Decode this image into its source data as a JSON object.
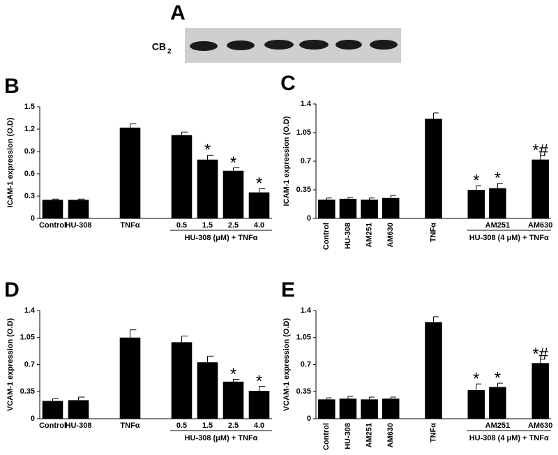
{
  "blot": {
    "panel_label": "A",
    "label": "CB",
    "subscript": "2"
  },
  "chart_data": [
    {
      "type": "bar",
      "panel_label": "B",
      "ylabel": "ICAM-1 expression (O.D)",
      "color": "#000000",
      "categories": [
        "Control",
        "HU-308",
        null,
        "TNFα",
        null,
        "0.5",
        "1.5",
        "2.5",
        "4.0"
      ],
      "values": [
        0.25,
        0.25,
        null,
        1.22,
        null,
        1.12,
        0.79,
        0.64,
        0.35
      ],
      "errors": [
        0.01,
        0.01,
        null,
        0.05,
        null,
        0.04,
        0.06,
        0.04,
        0.05
      ],
      "annotations": [
        null,
        null,
        null,
        null,
        null,
        null,
        "*",
        "*",
        "*"
      ],
      "group_label": "HU-308 (μM) + TNFα",
      "vertical_labels": false,
      "ylim": [
        0,
        1.5
      ],
      "yticks": [
        0,
        0.3,
        0.6,
        0.9,
        1.2,
        1.5
      ]
    },
    {
      "type": "bar",
      "panel_label": "C",
      "ylabel": "ICAM-1 expression (O.D)",
      "color": "#000000",
      "categories": [
        "Control",
        "HU-308",
        "AM251",
        "AM630",
        null,
        "TNFα",
        null,
        null,
        "AM251",
        null,
        "AM630"
      ],
      "values": [
        0.23,
        0.24,
        0.23,
        0.25,
        null,
        1.22,
        null,
        0.35,
        0.37,
        null,
        0.72
      ],
      "errors": [
        0.02,
        0.02,
        0.02,
        0.03,
        null,
        0.07,
        null,
        0.05,
        0.06,
        null,
        0.05
      ],
      "annotations": [
        null,
        null,
        null,
        null,
        null,
        null,
        null,
        "*",
        "*",
        null,
        "*#"
      ],
      "group_label": "HU-308 (4 μM) + TNFα",
      "vertical_labels": true,
      "ylim": [
        0,
        1.4
      ],
      "yticks": [
        0,
        0.35,
        0.7,
        1.05,
        1.4
      ]
    },
    {
      "type": "bar",
      "panel_label": "D",
      "ylabel": "VCAM-1 expression (O.D)",
      "color": "#000000",
      "categories": [
        "Control",
        "HU-308",
        null,
        "TNFα",
        null,
        "0.5",
        "1.5",
        "2.5",
        "4.0"
      ],
      "values": [
        0.23,
        0.24,
        null,
        1.05,
        null,
        0.99,
        0.73,
        0.48,
        0.36
      ],
      "errors": [
        0.03,
        0.04,
        null,
        0.1,
        null,
        0.08,
        0.08,
        0.03,
        0.06
      ],
      "annotations": [
        null,
        null,
        null,
        null,
        null,
        null,
        null,
        "*",
        "*"
      ],
      "group_label": "HU-308 (μM) + TNFα",
      "vertical_labels": false,
      "ylim": [
        0,
        1.4
      ],
      "yticks": [
        0,
        0.35,
        0.7,
        1.05,
        1.4
      ]
    },
    {
      "type": "bar",
      "panel_label": "E",
      "ylabel": "VCAM-1 expression (O.D)",
      "color": "#000000",
      "categories": [
        "Control",
        "HU-308",
        "AM251",
        "AM630",
        null,
        "TNFα",
        null,
        null,
        "AM251",
        null,
        "AM630"
      ],
      "values": [
        0.25,
        0.26,
        0.25,
        0.26,
        null,
        1.25,
        null,
        0.37,
        0.41,
        null,
        0.72
      ],
      "errors": [
        0.02,
        0.03,
        0.03,
        0.02,
        null,
        0.07,
        null,
        0.08,
        0.05,
        null,
        0.05
      ],
      "annotations": [
        null,
        null,
        null,
        null,
        null,
        null,
        null,
        "*",
        "*",
        null,
        "*#"
      ],
      "group_label": "HU-308 (4 μM) + TNFα",
      "vertical_labels": true,
      "ylim": [
        0,
        1.4
      ],
      "yticks": [
        0,
        0.35,
        0.7,
        1.05,
        1.4
      ]
    }
  ]
}
